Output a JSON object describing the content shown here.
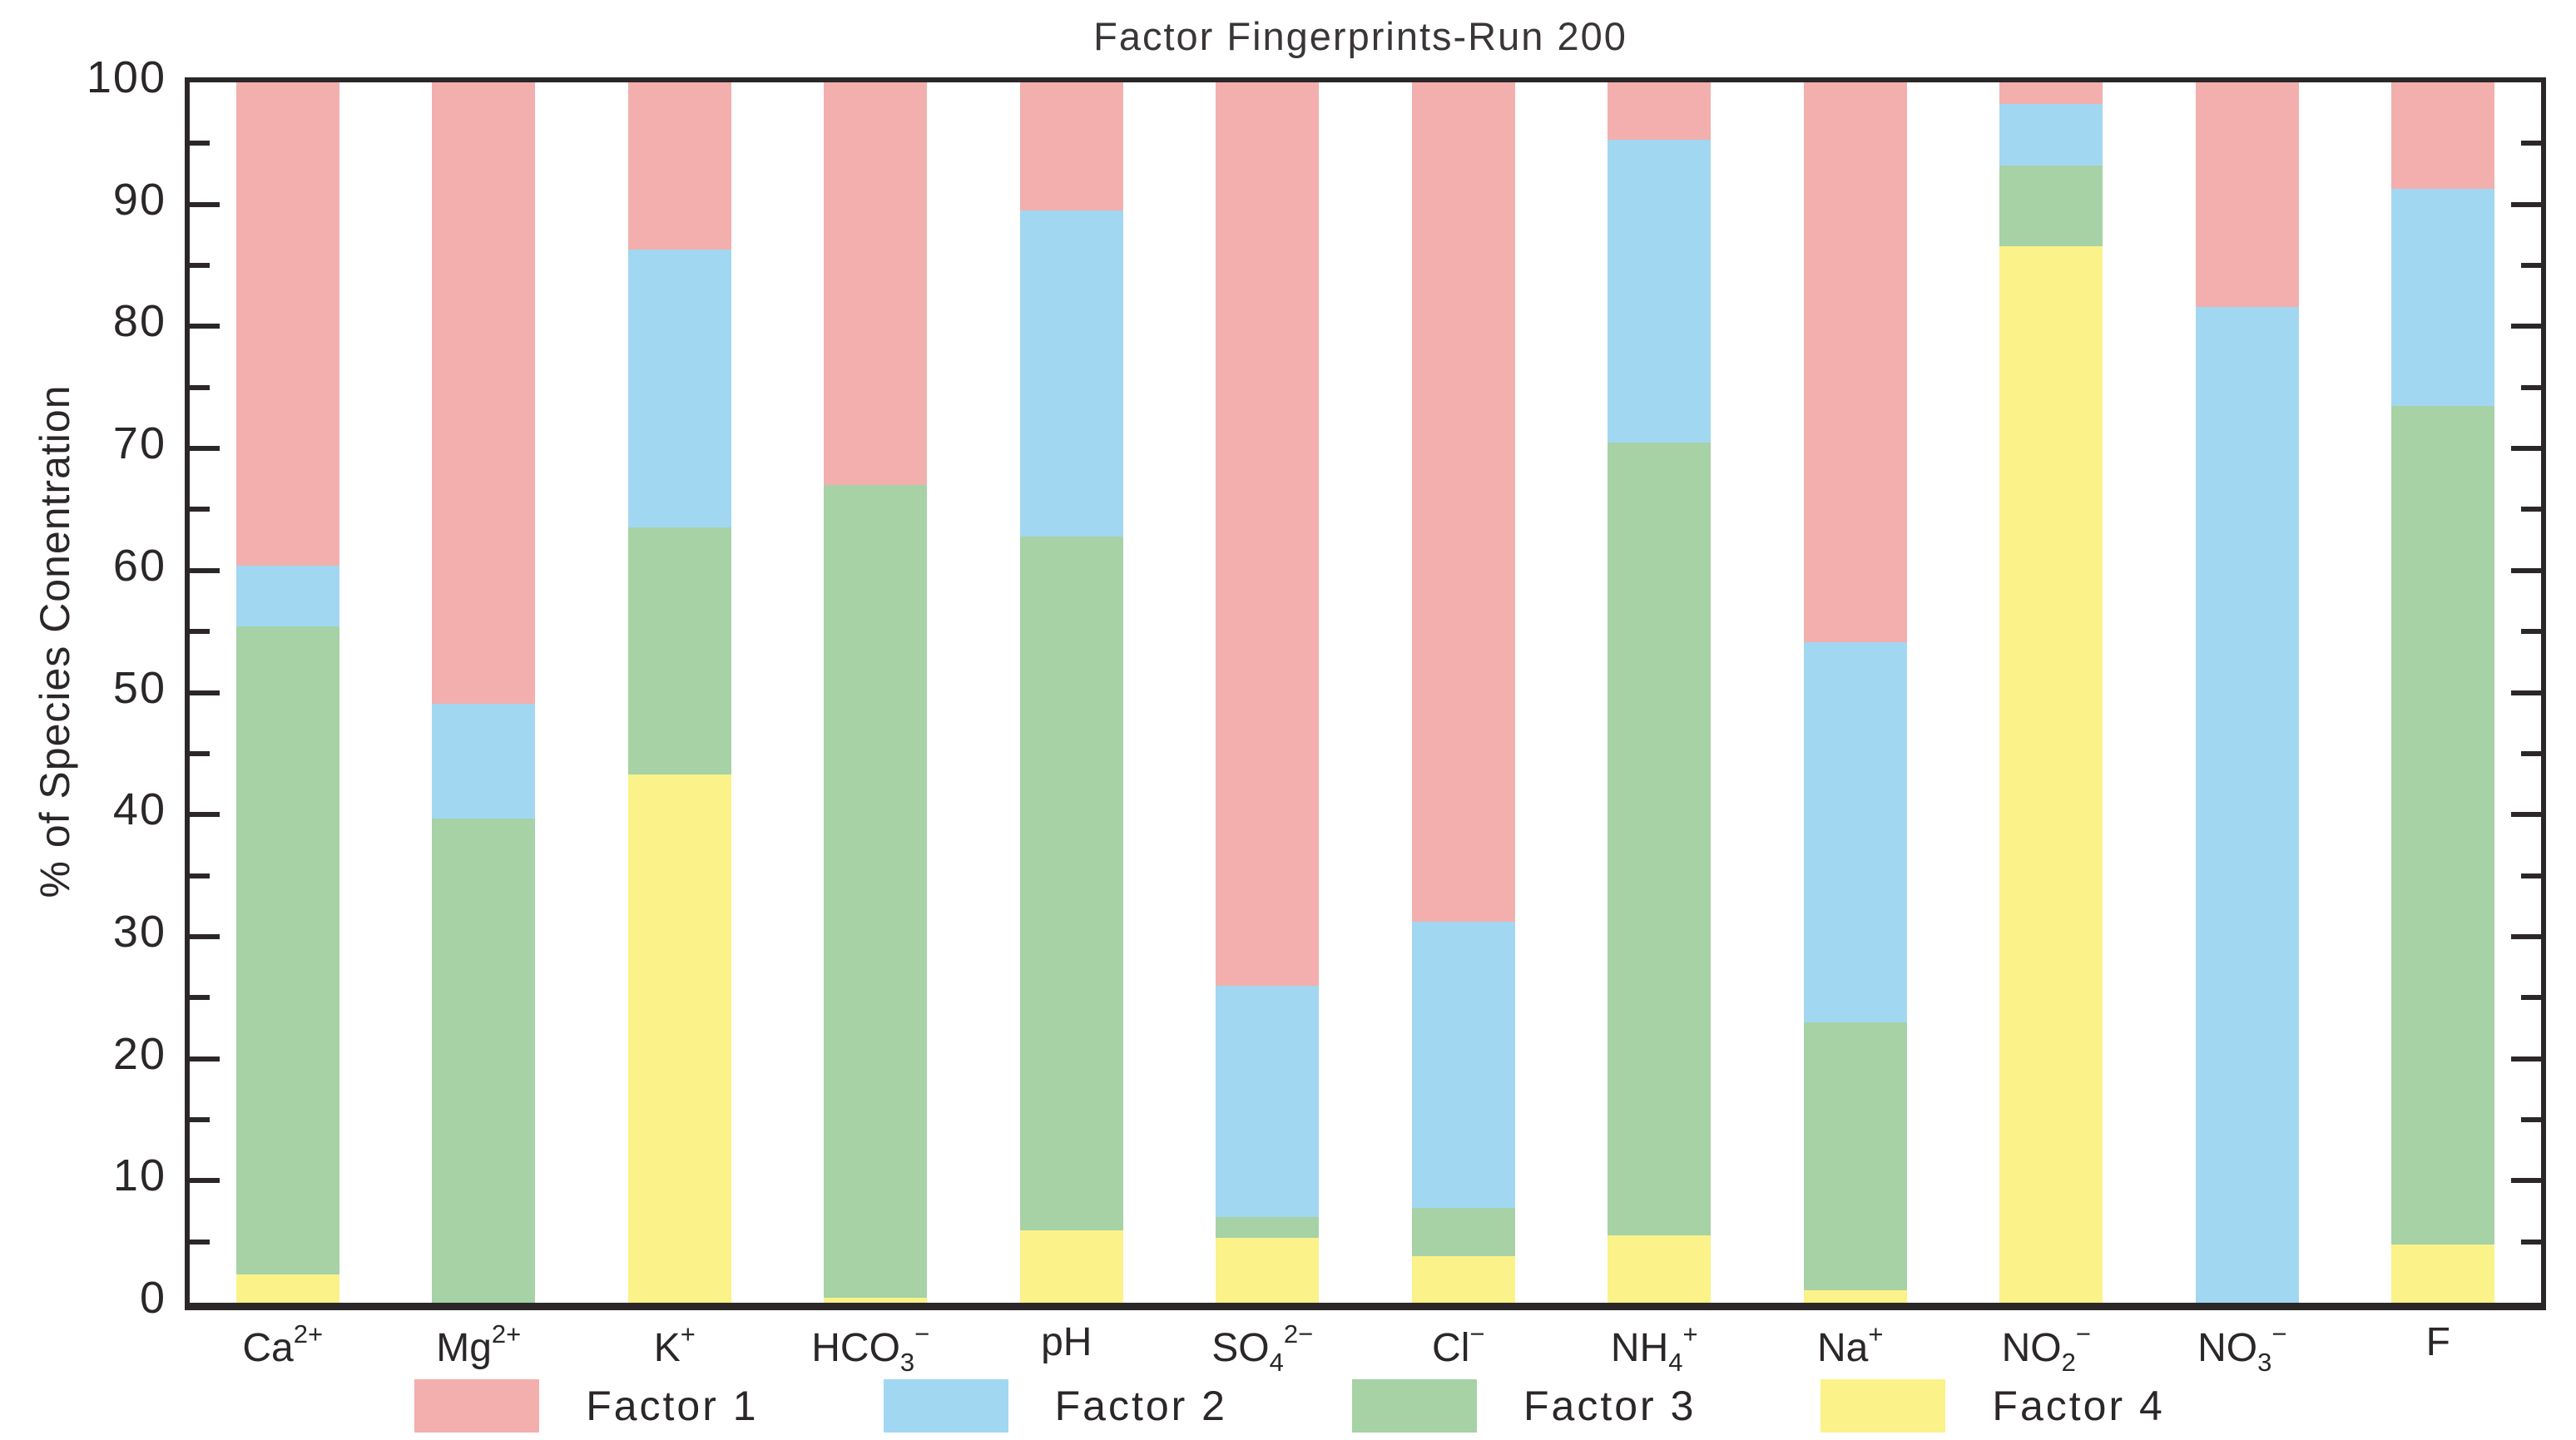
{
  "chart_data": {
    "type": "bar",
    "stacked": true,
    "title": "Factor Fingerprints-Run 200",
    "ylabel": "% of Species Conentration",
    "xlabel": "",
    "ylim": [
      0,
      100
    ],
    "ytick_major_step": 10,
    "ytick_minor_step": 5,
    "grid": false,
    "legend_position": "bottom",
    "categories": [
      {
        "base": "Ca",
        "sub": "",
        "sup": "2+"
      },
      {
        "base": "Mg",
        "sub": "",
        "sup": "2+"
      },
      {
        "base": "K",
        "sub": "",
        "sup": "+"
      },
      {
        "base": "HCO",
        "sub": "3",
        "sup": "−"
      },
      {
        "base": "pH",
        "sub": "",
        "sup": ""
      },
      {
        "base": "SO",
        "sub": "4",
        "sup": "2−"
      },
      {
        "base": "Cl",
        "sub": "",
        "sup": "−"
      },
      {
        "base": "NH",
        "sub": "4",
        "sup": "+"
      },
      {
        "base": "Na",
        "sub": "",
        "sup": "+"
      },
      {
        "base": "NO",
        "sub": "2",
        "sup": "−"
      },
      {
        "base": "NO",
        "sub": "3",
        "sup": "−"
      },
      {
        "base": "F",
        "sub": "",
        "sup": ""
      }
    ],
    "stack_order_bottom_to_top": [
      "Factor 4",
      "Factor 3",
      "Factor 2",
      "Factor 1"
    ],
    "series": [
      {
        "name": "Factor 1",
        "color": "#F2AFAD",
        "values": [
          39.6,
          50.9,
          13.7,
          33.0,
          10.5,
          74.0,
          68.8,
          4.7,
          45.9,
          1.8,
          18.4,
          8.7
        ]
      },
      {
        "name": "Factor 2",
        "color": "#A2D7F2",
        "values": [
          5.0,
          9.4,
          22.8,
          0.0,
          26.7,
          19.0,
          23.4,
          24.8,
          31.1,
          5.0,
          81.6,
          17.8
        ]
      },
      {
        "name": "Factor 3",
        "color": "#A6D2A6",
        "values": [
          53.1,
          39.7,
          20.2,
          66.6,
          56.9,
          1.7,
          4.0,
          65.0,
          22.0,
          6.6,
          0.0,
          68.7
        ]
      },
      {
        "name": "Factor 4",
        "color": "#FBF28A",
        "values": [
          2.3,
          0.0,
          43.3,
          0.4,
          5.9,
          5.3,
          3.8,
          5.5,
          1.0,
          86.6,
          0.0,
          4.8
        ]
      }
    ],
    "ytick_labels": [
      "0",
      "10",
      "20",
      "30",
      "40",
      "50",
      "60",
      "70",
      "80",
      "90",
      "100"
    ]
  },
  "colors": {
    "axis": "#2b2728",
    "background": "#ffffff",
    "factor1": "#F2AFAD",
    "factor2": "#A2D7F2",
    "factor3": "#A6D2A6",
    "factor4": "#FBF28A"
  }
}
